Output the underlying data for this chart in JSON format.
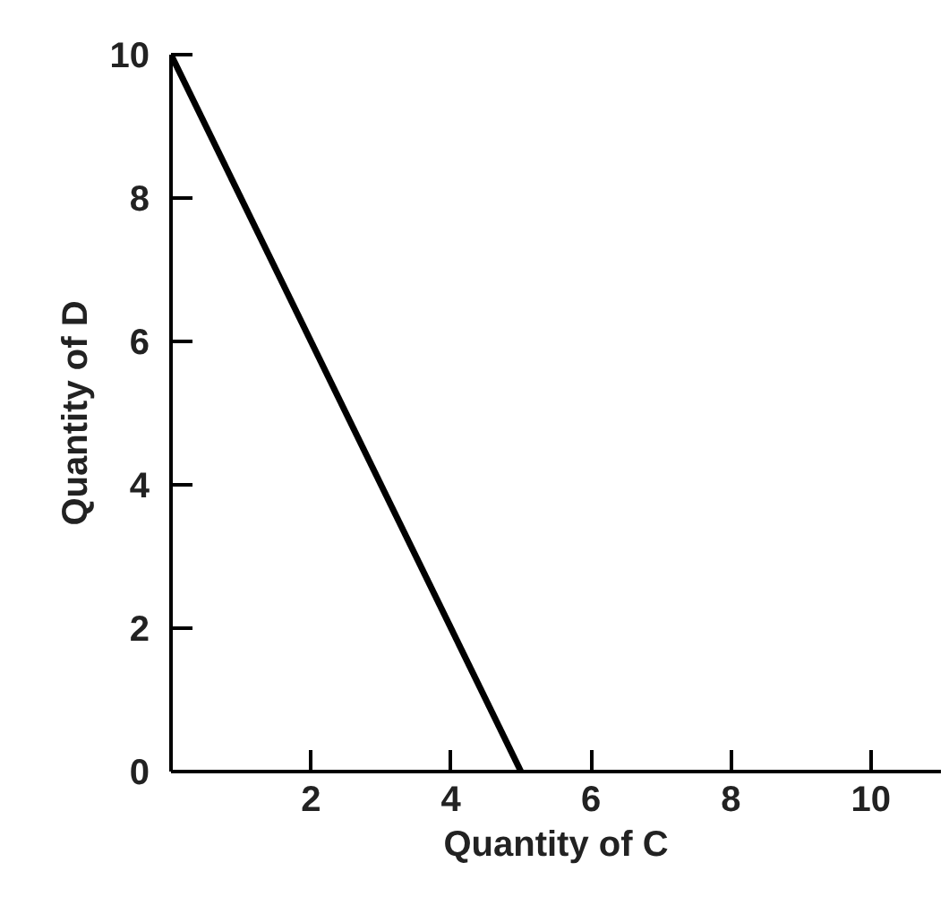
{
  "chart_data": {
    "type": "line",
    "xlabel": "Quantity of C",
    "ylabel": "Quantity of D",
    "x": [
      0,
      5
    ],
    "series": [
      {
        "color": "#000000",
        "values": [
          10,
          0
        ]
      }
    ],
    "xlim": [
      0,
      11
    ],
    "ylim": [
      0,
      10
    ],
    "xticks": [
      2,
      4,
      6,
      8,
      10
    ],
    "yticks": [
      0,
      2,
      4,
      6,
      8,
      10
    ],
    "grid": false,
    "marker": "none",
    "line_style": "solid"
  }
}
